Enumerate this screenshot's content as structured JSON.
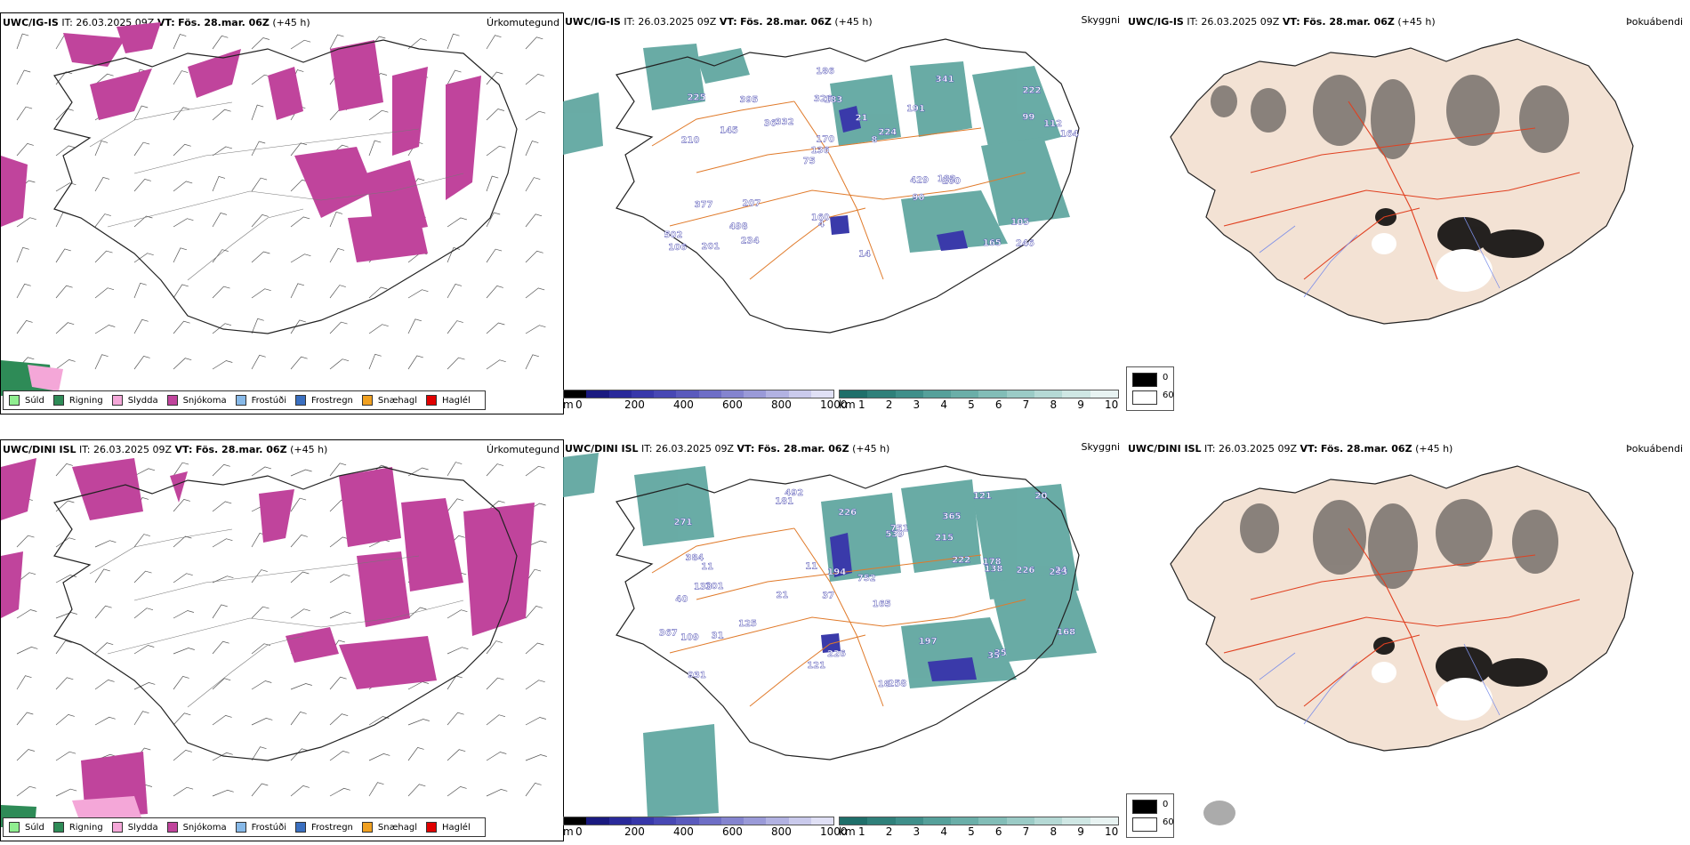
{
  "header": {
    "model_top": "UWC/IG-IS",
    "model_bottom": "UWC/DINI ISL",
    "it_label": "IT:",
    "it_value": "26.03.2025 09Z",
    "vt_label": "VT:",
    "vt_value": "Fös. 28.mar. 06Z",
    "lead": "(+45 h)"
  },
  "titles": {
    "precip": "Úrkomutegund",
    "clouds": "Skyggni",
    "fog": "Þokuábendi"
  },
  "legend": {
    "items": [
      {
        "label": "Súld",
        "color": "#90ee90"
      },
      {
        "label": "Rigning",
        "color": "#2e8b57"
      },
      {
        "label": "Slydda",
        "color": "#f4a7d8"
      },
      {
        "label": "Snjókoma",
        "color": "#c0449c"
      },
      {
        "label": "Frostúði",
        "color": "#87b9e8"
      },
      {
        "label": "Frostregn",
        "color": "#3a6fc0"
      },
      {
        "label": "Snæhagl",
        "color": "#f0a020"
      },
      {
        "label": "Haglél",
        "color": "#e00000"
      }
    ]
  },
  "colorbar_m": {
    "unit": "m",
    "ticks": [
      "0",
      "200",
      "400",
      "600",
      "800",
      "1000"
    ],
    "colors": [
      "#000000",
      "#1a1a80",
      "#2a2a9a",
      "#3838aa",
      "#4848b4",
      "#5a5abd",
      "#6e6ec6",
      "#8484cf",
      "#9a9ad8",
      "#b2b2e2",
      "#cacaec",
      "#e0e0f5"
    ]
  },
  "colorbar_km": {
    "unit": "km",
    "ticks": [
      "1",
      "2",
      "3",
      "4",
      "5",
      "6",
      "7",
      "8",
      "9",
      "10"
    ],
    "colors": [
      "#1f6f6a",
      "#2f807a",
      "#3f8f8a",
      "#55a09a",
      "#6aaea8",
      "#82bdb7",
      "#9bcbc6",
      "#b5d9d5",
      "#cfe7e4",
      "#e8f3f2"
    ]
  },
  "fog_legend": {
    "values": [
      "0",
      "60"
    ],
    "colors": [
      "#000000",
      "#ffffff"
    ]
  },
  "cloud_labels_top": [
    "246",
    "210",
    "222",
    "75",
    "191",
    "201",
    "326",
    "21",
    "377",
    "332",
    "502",
    "498",
    "183",
    "224",
    "260",
    "225",
    "186",
    "164",
    "429",
    "99",
    "136",
    "160",
    "170",
    "395",
    "341",
    "207",
    "165",
    "105",
    "182",
    "14",
    "36",
    "145",
    "90",
    "234",
    "112",
    "8",
    "106",
    "4"
  ],
  "cloud_labels_bottom": [
    "492",
    "365",
    "233",
    "37",
    "165",
    "101",
    "271",
    "215",
    "40",
    "539",
    "752",
    "931",
    "181",
    "21",
    "18",
    "258",
    "226",
    "121",
    "222",
    "125",
    "11",
    "133",
    "24",
    "226",
    "367",
    "384",
    "194",
    "138",
    "35",
    "109",
    "35",
    "751",
    "31",
    "11",
    "197",
    "168",
    "178",
    "121",
    "20",
    "226"
  ]
}
